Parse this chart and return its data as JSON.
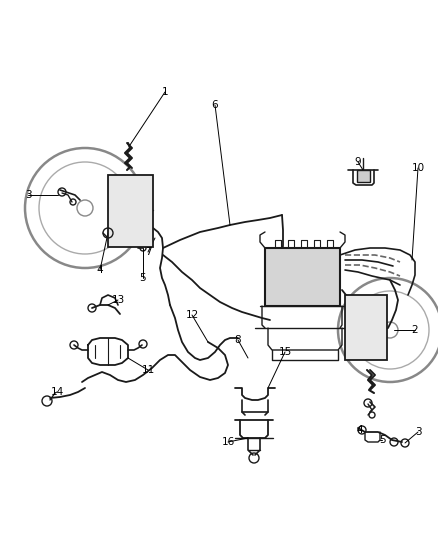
{
  "bg_color": "#ffffff",
  "fg_color": "#1a1a1a",
  "gray_color": "#666666",
  "light_gray": "#999999",
  "figsize": [
    4.38,
    5.33
  ],
  "dpi": 100
}
